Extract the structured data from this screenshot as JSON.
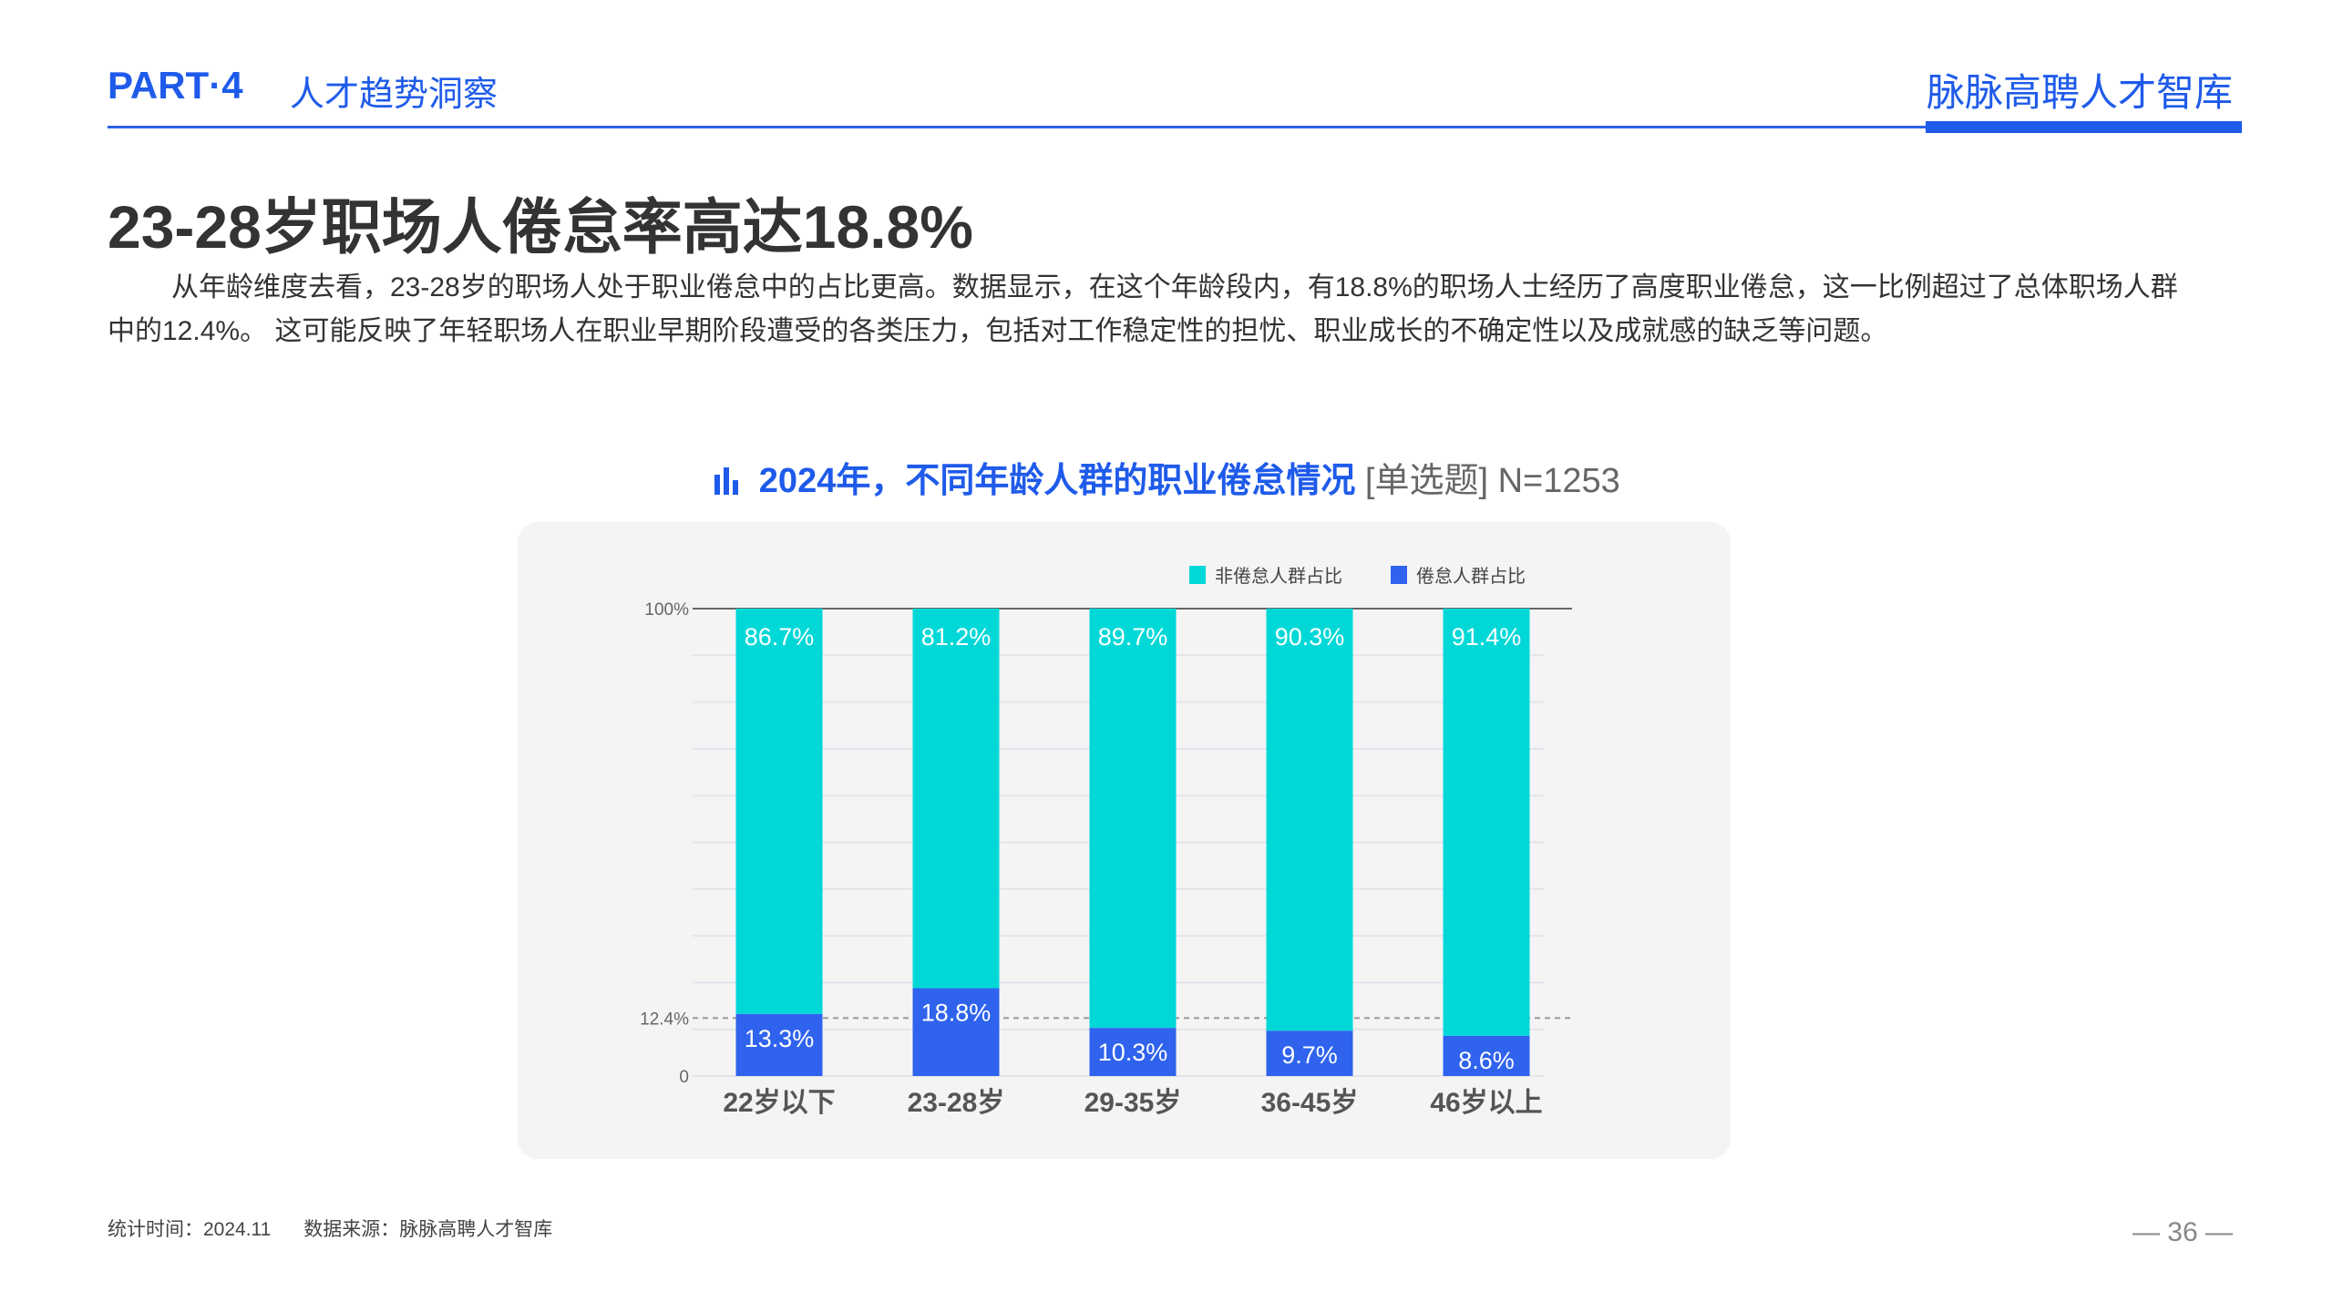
{
  "header": {
    "part": "PART·4",
    "section": "人才趋势洞察",
    "brand": "脉脉高聘人才智库"
  },
  "title": "23-28岁职场人倦怠率高达18.8%",
  "paragraph": "从年龄维度去看，23-28岁的职场人处于职业倦怠中的占比更高。数据显示，在这个年龄段内，有18.8%的职场人士经历了高度职业倦怠，这一比例超过了总体职场人群中的12.4%。 这可能反映了年轻职场人在职业早期阶段遭受的各类压力，包括对工作稳定性的担忧、职业成长的不确定性以及成就感的缺乏等问题。",
  "chart_title": {
    "main": "2024年，不同年龄人群的职业倦怠情况",
    "note": "[单选题] N=1253",
    "icon": "bar-chart-icon"
  },
  "chart_data": {
    "type": "bar",
    "stacked": true,
    "categories": [
      "22岁以下",
      "23-28岁",
      "29-35岁",
      "36-45岁",
      "46岁以上"
    ],
    "series": [
      {
        "name": "倦怠人群占比",
        "color": "#2f63ee",
        "values": [
          13.3,
          18.8,
          10.3,
          9.7,
          8.6
        ],
        "labels": [
          "13.3%",
          "18.8%",
          "10.3%",
          "9.7%",
          "8.6%"
        ]
      },
      {
        "name": "非倦怠人群占比",
        "color": "#00d8d8",
        "values": [
          86.7,
          81.2,
          89.7,
          90.3,
          91.4
        ],
        "labels": [
          "86.7%",
          "81.2%",
          "89.7%",
          "90.3%",
          "91.4%"
        ]
      }
    ],
    "ylim": [
      0,
      100
    ],
    "yticks": [
      {
        "value": 100,
        "label": "100%"
      },
      {
        "value": 12.4,
        "label": "12.4%"
      },
      {
        "value": 0,
        "label": "0"
      }
    ],
    "reference_line": {
      "value": 12.4,
      "style": "dashed"
    },
    "legend": "top-right",
    "grid": true
  },
  "footer": {
    "time": "统计时间：2024.11",
    "source": "数据来源：脉脉高聘人才智库",
    "page": "— 36 —"
  }
}
